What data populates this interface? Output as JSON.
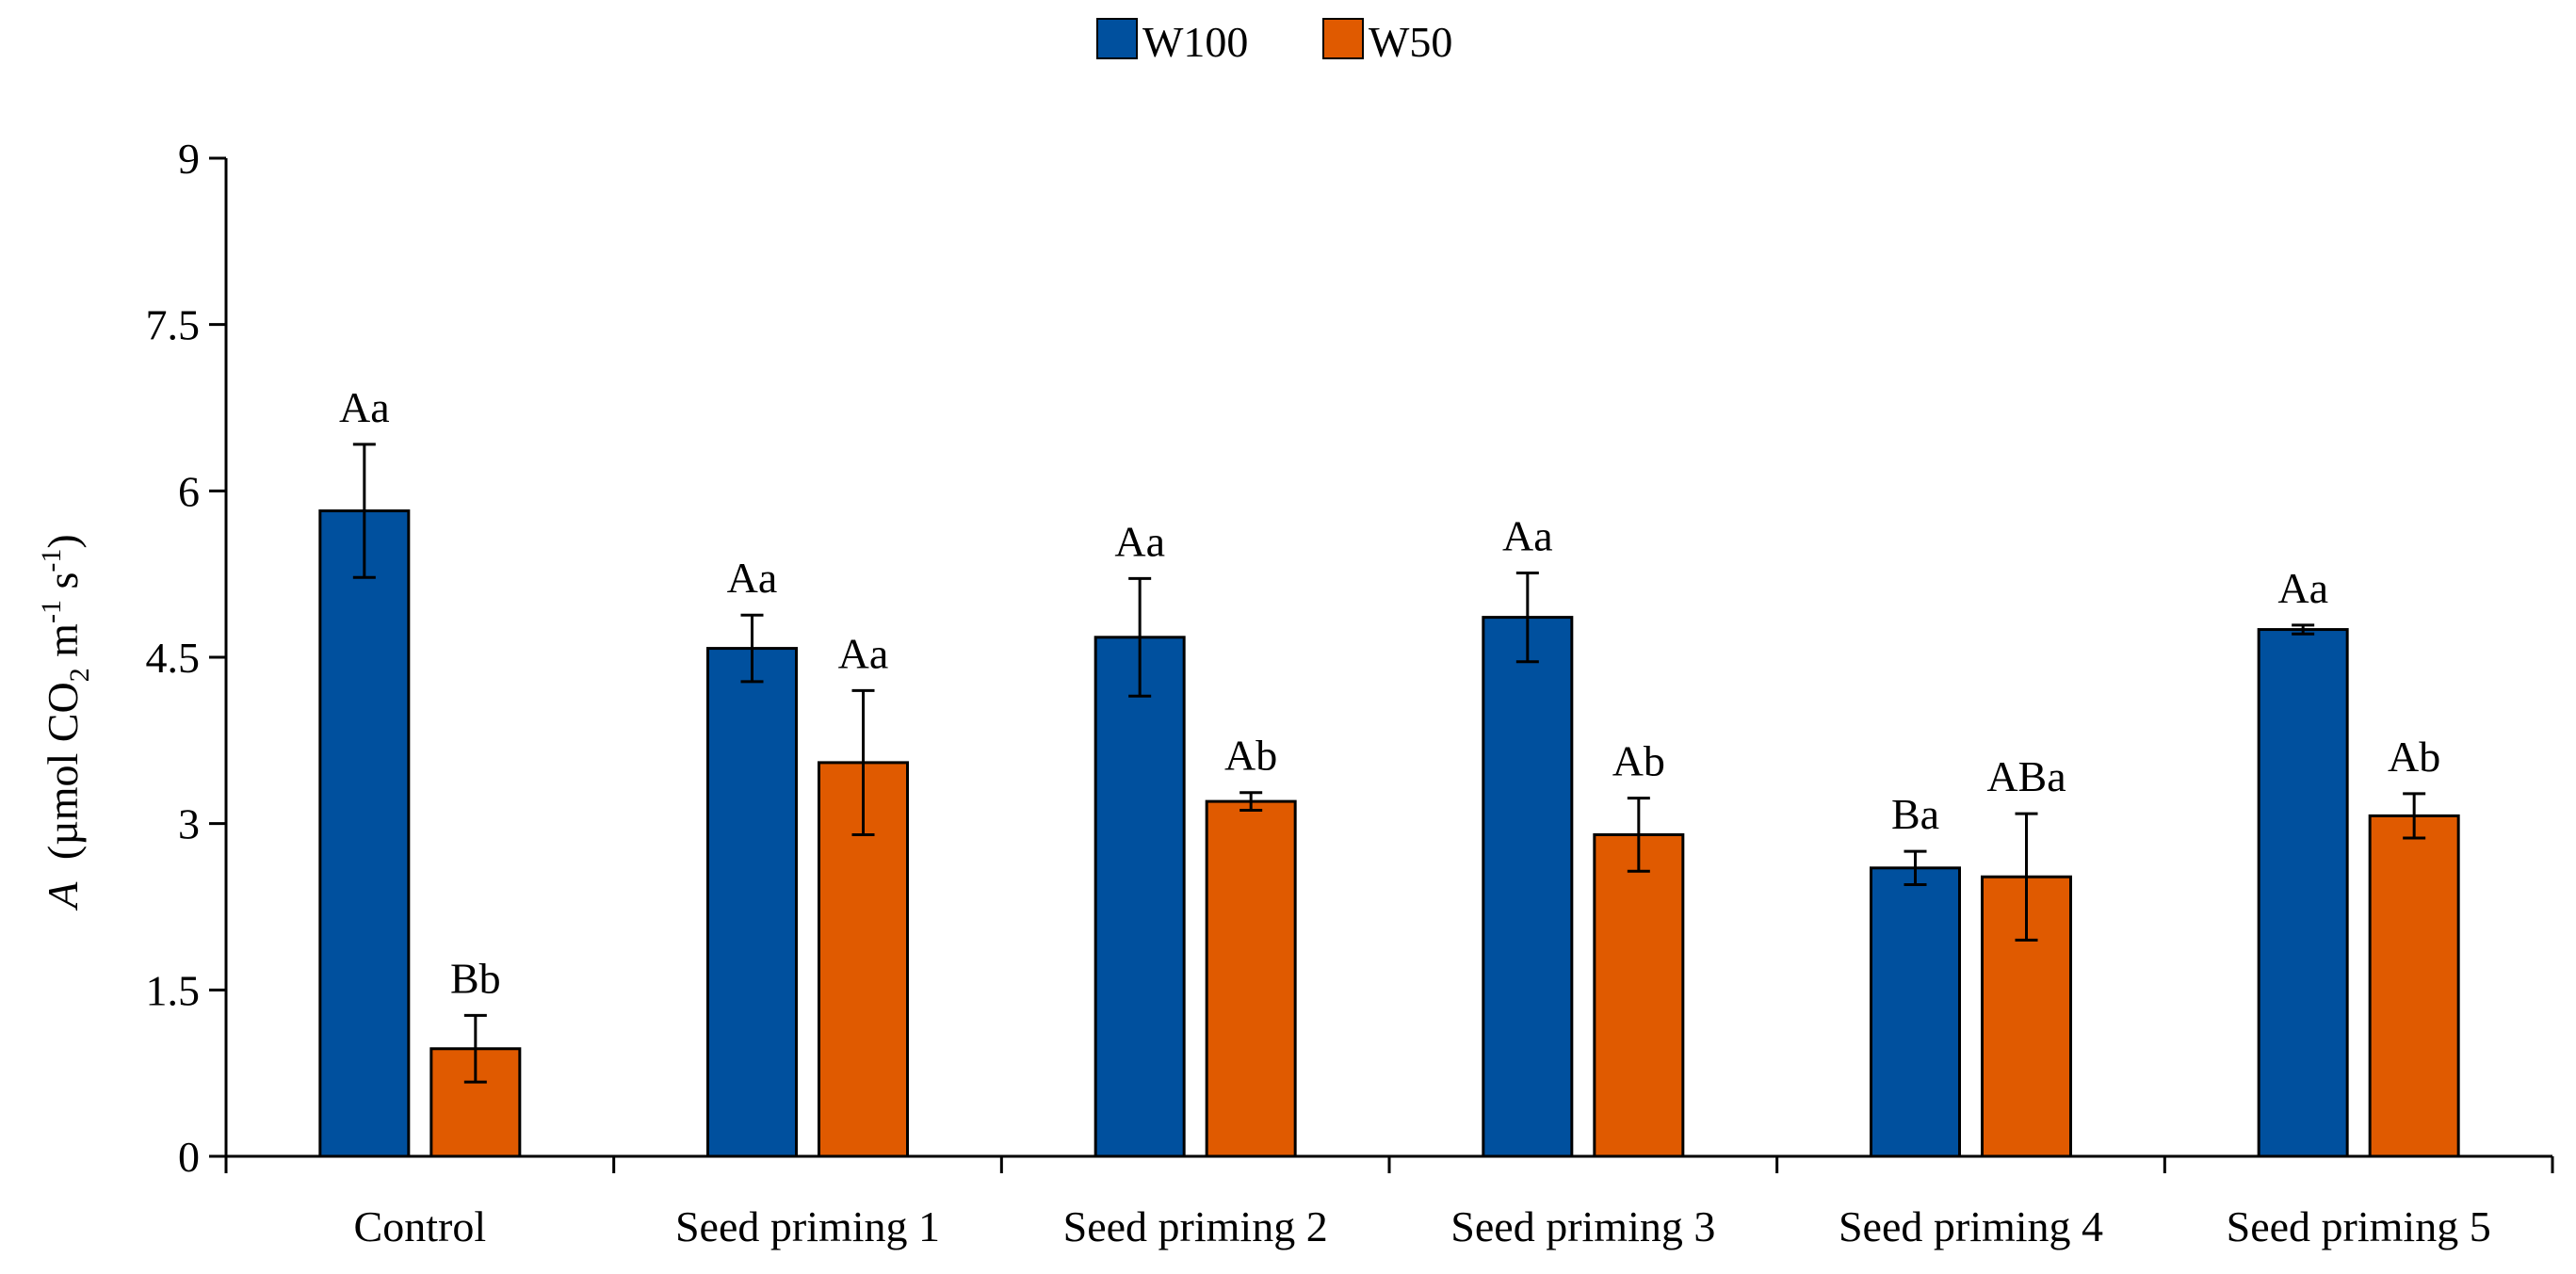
{
  "chart_data": {
    "type": "bar",
    "title": "",
    "xlabel": "",
    "ylabel": {
      "symbol": "A",
      "open": "(µmol CO",
      "co2_subscript": "2",
      "m": " m",
      "m_exp": "-1",
      "s": " s",
      "s_exp": "-1",
      "close": ")"
    },
    "ylim": [
      0,
      9
    ],
    "yticks": [
      "0",
      "1.5",
      "3",
      "4.5",
      "6",
      "7.5",
      "9"
    ],
    "categories": [
      "Control",
      "Seed priming 1",
      "Seed priming 2",
      "Seed priming 3",
      "Seed priming 4",
      "Seed priming 5"
    ],
    "legend_position": "top-center",
    "series": [
      {
        "name": "W100",
        "color": "#00509E",
        "values": [
          5.82,
          4.58,
          4.68,
          4.86,
          2.6,
          4.75
        ],
        "errors": [
          0.6,
          0.3,
          0.53,
          0.4,
          0.15,
          0.04
        ],
        "labels": [
          "Aa",
          "Aa",
          "Aa",
          "Aa",
          "Ba",
          "Aa"
        ]
      },
      {
        "name": "W50",
        "color": "#E05A00",
        "values": [
          0.97,
          3.55,
          3.2,
          2.9,
          2.52,
          3.07
        ],
        "errors": [
          0.3,
          0.65,
          0.08,
          0.33,
          0.57,
          0.2
        ],
        "labels": [
          "Bb",
          "Aa",
          "Ab",
          "Ab",
          "ABa",
          "Ab"
        ]
      }
    ]
  }
}
